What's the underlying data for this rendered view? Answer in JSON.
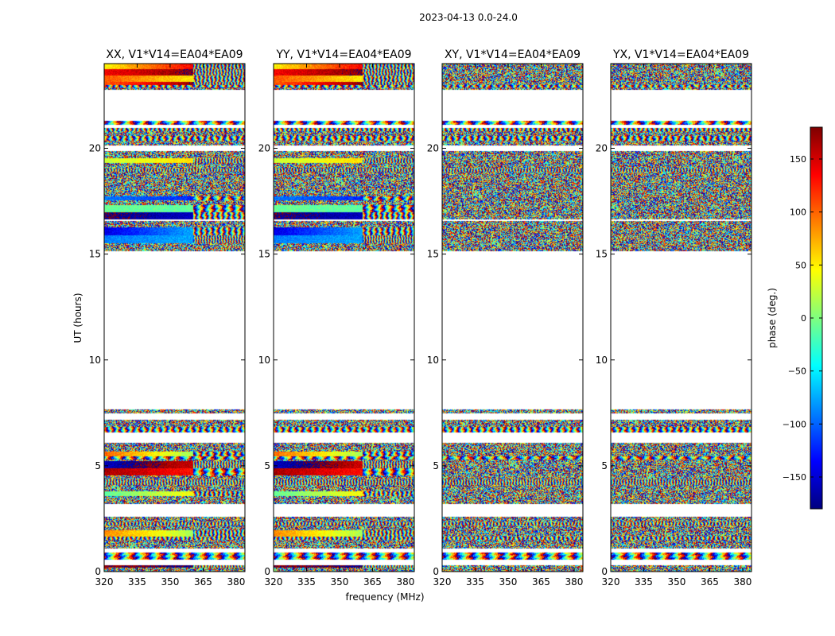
{
  "figure": {
    "suptitle": "2023-04-13 0.0-24.0",
    "xlabel": "frequency (MHz)",
    "ylabel": "UT (hours)"
  },
  "chart_data": {
    "type": "heatmap",
    "xlim": [
      320,
      384
    ],
    "ylim": [
      0,
      24
    ],
    "x_ticks": [
      320,
      335,
      350,
      365,
      380
    ],
    "y_ticks": [
      0,
      5,
      10,
      15,
      20
    ],
    "panels": [
      {
        "title": "XX, V1*V14=EA04*EA09",
        "coherent": true
      },
      {
        "title": "YY, V1*V14=EA04*EA09",
        "coherent": true
      },
      {
        "title": "XY, V1*V14=EA04*EA09",
        "coherent": false
      },
      {
        "title": "YX, V1*V14=EA04*EA09",
        "coherent": false
      }
    ],
    "data_gaps_hours": [
      [
        7.65,
        15.05
      ],
      [
        21.3,
        22.75
      ]
    ],
    "colorbar": {
      "label": "phase (deg.)",
      "range": [
        -180,
        180
      ],
      "ticks": [
        150,
        100,
        50,
        0,
        -50,
        -100,
        -150
      ],
      "colormap": "jet",
      "colors": [
        "#00007f",
        "#0000ff",
        "#007fff",
        "#00ffff",
        "#7fff7f",
        "#ffff00",
        "#ff7f00",
        "#ff0000",
        "#7f0000"
      ]
    }
  }
}
